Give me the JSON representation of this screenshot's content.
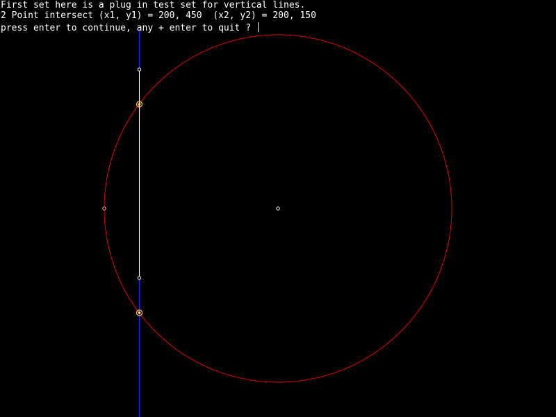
{
  "console": {
    "line1": "First set here is a plug in test set for vertical lines.",
    "line2": "2 Point intersect (x1, y1) = 200, 450  (x2, y2) = 200, 150",
    "prompt": "press enter to continue, any + enter to quit ? "
  },
  "colors": {
    "background": "#000000",
    "circle": "#e00000",
    "infinite_line": "#2020ff",
    "segment": "#ffffff",
    "intersection": "#ffcc33",
    "text": "#ffffff"
  }
}
